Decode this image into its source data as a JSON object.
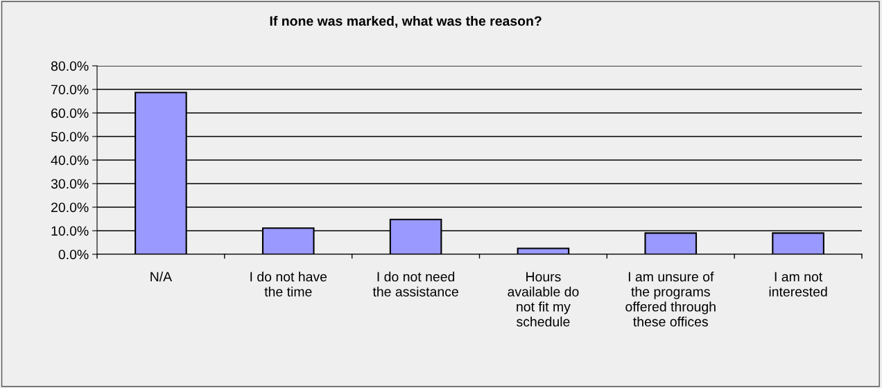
{
  "chart_data": {
    "type": "bar",
    "title": "If none was marked, what was the reason?",
    "categories": [
      "N/A",
      "I do not have\nthe time",
      "I do not need\nthe assistance",
      "Hours\navailable do\nnot fit my\nschedule",
      "I am unsure of\nthe programs\noffered through\nthese offices",
      "I am not\ninterested"
    ],
    "values": [
      68.7,
      11.1,
      14.8,
      2.5,
      9.0,
      9.0
    ],
    "color": "#9999ff",
    "ylim": [
      0,
      80
    ],
    "yticks": [
      {
        "value": 0,
        "label": "0.0%"
      },
      {
        "value": 10,
        "label": "10.0%"
      },
      {
        "value": 20,
        "label": "20.0%"
      },
      {
        "value": 30,
        "label": "30.0%"
      },
      {
        "value": 40,
        "label": "40.0%"
      },
      {
        "value": 50,
        "label": "50.0%"
      },
      {
        "value": 60,
        "label": "60.0%"
      },
      {
        "value": 70,
        "label": "70.0%"
      },
      {
        "value": 80,
        "label": "80.0%"
      }
    ],
    "grid": "y",
    "legend": false
  }
}
